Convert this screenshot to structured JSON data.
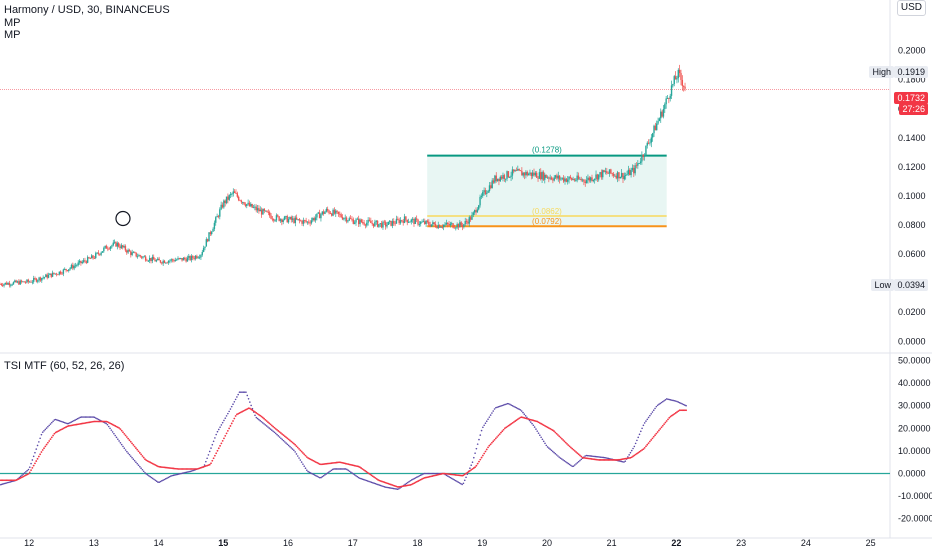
{
  "header": {
    "title": "Harmony / USD, 30, BINANCEUS",
    "indicator_1": "MP",
    "indicator_2": "MP"
  },
  "scale_label": "USD",
  "tsi_label": "TSI MTF (60, 52, 26, 26)",
  "tags": {
    "high_label": "High",
    "high_value": "0.1919",
    "low_label": "Low",
    "low_value": "0.0394",
    "last_price": "0.1732",
    "countdown": "27:26"
  },
  "colors": {
    "up": "#26a69a",
    "down": "#ef5350",
    "tsi": "#5b4aa8",
    "signal": "#f23645",
    "zero_line": "#26a69a",
    "box_top": "#089981",
    "box_mid": "#f7d95c",
    "box_bottom": "#f7931a",
    "box_fill": "#e8f6f3"
  },
  "chart_data": [
    {
      "type": "candlestick",
      "title": "Harmony / USD, 30, BINANCEUS",
      "y_ticks": [
        0.2,
        0.18,
        0.16,
        0.14,
        0.12,
        0.1,
        0.08,
        0.06,
        0.04,
        0.02,
        0
      ],
      "y_tick_labels": [
        "0.2000",
        "0.1800",
        "0.1600",
        "0.1400",
        "0.1200",
        "0.1000",
        "0.0800",
        "0.0600",
        "0.0400",
        "0.0200",
        "0.0000"
      ],
      "x_tick_labels": [
        "12",
        "13",
        "14",
        "15",
        "16",
        "17",
        "18",
        "19",
        "20",
        "21",
        "22",
        "23",
        "24",
        "25"
      ],
      "x_ticks": [
        12,
        13,
        14,
        15,
        16,
        17,
        18,
        19,
        20,
        21,
        22,
        23,
        24,
        25
      ],
      "xlim": [
        11.55,
        25.3
      ],
      "ylim": [
        -0.006,
        0.228
      ],
      "x_end": 22.15,
      "price_path": [
        [
          11.55,
          0.0395
        ],
        [
          12.0,
          0.041
        ],
        [
          12.5,
          0.048
        ],
        [
          13.0,
          0.058
        ],
        [
          13.2,
          0.065
        ],
        [
          13.35,
          0.067
        ],
        [
          13.6,
          0.06
        ],
        [
          14.0,
          0.055
        ],
        [
          14.5,
          0.057
        ],
        [
          14.65,
          0.06
        ],
        [
          14.85,
          0.08
        ],
        [
          15.0,
          0.095
        ],
        [
          15.15,
          0.102
        ],
        [
          15.4,
          0.093
        ],
        [
          15.8,
          0.085
        ],
        [
          16.3,
          0.082
        ],
        [
          16.6,
          0.09
        ],
        [
          17.0,
          0.083
        ],
        [
          17.5,
          0.08
        ],
        [
          17.8,
          0.084
        ],
        [
          18.0,
          0.082
        ],
        [
          18.3,
          0.08
        ],
        [
          18.7,
          0.08
        ],
        [
          18.85,
          0.086
        ],
        [
          19.0,
          0.1
        ],
        [
          19.2,
          0.112
        ],
        [
          19.5,
          0.116
        ],
        [
          19.8,
          0.115
        ],
        [
          20.2,
          0.112
        ],
        [
          20.6,
          0.111
        ],
        [
          20.9,
          0.116
        ],
        [
          21.2,
          0.114
        ],
        [
          21.35,
          0.118
        ],
        [
          21.5,
          0.13
        ],
        [
          21.65,
          0.145
        ],
        [
          21.8,
          0.16
        ],
        [
          21.9,
          0.172
        ],
        [
          22.02,
          0.184
        ],
        [
          22.1,
          0.178
        ],
        [
          22.15,
          0.1732
        ]
      ],
      "high": 0.1919,
      "low": 0.0394,
      "last": 0.1732,
      "box": {
        "x_start": 18.15,
        "x_end": 21.85,
        "top": 0.1278,
        "mid": 0.0862,
        "bottom": 0.0792,
        "top_label": "(0.1278)",
        "mid_label": "(0.0862)",
        "bottom_label": "(0.0792)"
      },
      "marker_circle": {
        "x": 13.45,
        "y": 0.0845
      }
    },
    {
      "type": "line",
      "title": "TSI MTF (60, 52, 26, 26)",
      "y_ticks": [
        50,
        40,
        30,
        20,
        10,
        0,
        -10,
        -20
      ],
      "y_tick_labels": [
        "50.0000",
        "40.0000",
        "30.0000",
        "20.0000",
        "10.0000",
        "0.0000",
        "-10.0000",
        "-20.0000"
      ],
      "ylim": [
        -25,
        52
      ],
      "series": [
        {
          "values": [
            [
              11.55,
              -5
            ],
            [
              11.8,
              -3
            ],
            [
              12.0,
              2
            ],
            [
              12.2,
              18
            ],
            [
              12.4,
              24
            ],
            [
              12.6,
              22
            ],
            [
              12.8,
              25
            ],
            [
              13.0,
              25
            ],
            [
              13.2,
              22
            ],
            [
              13.5,
              10
            ],
            [
              13.8,
              0
            ],
            [
              14.0,
              -4
            ],
            [
              14.2,
              -1
            ],
            [
              14.5,
              1
            ],
            [
              14.7,
              3
            ],
            [
              14.9,
              18
            ],
            [
              15.1,
              28
            ],
            [
              15.25,
              36
            ],
            [
              15.35,
              36
            ],
            [
              15.5,
              25
            ],
            [
              15.8,
              18
            ],
            [
              16.1,
              10
            ],
            [
              16.3,
              1
            ],
            [
              16.5,
              -2
            ],
            [
              16.7,
              2
            ],
            [
              16.9,
              2
            ],
            [
              17.1,
              -2
            ],
            [
              17.3,
              -4
            ],
            [
              17.5,
              -6
            ],
            [
              17.7,
              -7
            ],
            [
              17.9,
              -3
            ],
            [
              18.1,
              0
            ],
            [
              18.4,
              0
            ],
            [
              18.7,
              -5
            ],
            [
              18.85,
              5
            ],
            [
              19.0,
              20
            ],
            [
              19.2,
              29
            ],
            [
              19.4,
              31
            ],
            [
              19.6,
              28
            ],
            [
              19.8,
              21
            ],
            [
              20.0,
              12
            ],
            [
              20.2,
              7
            ],
            [
              20.4,
              3
            ],
            [
              20.6,
              8
            ],
            [
              20.9,
              7
            ],
            [
              21.2,
              5
            ],
            [
              21.35,
              12
            ],
            [
              21.5,
              22
            ],
            [
              21.7,
              30
            ],
            [
              21.85,
              33
            ],
            [
              22.0,
              32
            ],
            [
              22.15,
              30
            ]
          ]
        },
        {
          "values": [
            [
              11.55,
              -3
            ],
            [
              11.8,
              -3
            ],
            [
              12.0,
              0
            ],
            [
              12.2,
              10
            ],
            [
              12.4,
              18
            ],
            [
              12.6,
              21
            ],
            [
              12.8,
              22
            ],
            [
              13.0,
              23
            ],
            [
              13.2,
              23
            ],
            [
              13.4,
              20
            ],
            [
              13.6,
              13
            ],
            [
              13.8,
              6
            ],
            [
              14.0,
              3
            ],
            [
              14.3,
              2
            ],
            [
              14.6,
              2
            ],
            [
              14.8,
              4
            ],
            [
              15.0,
              15
            ],
            [
              15.2,
              26
            ],
            [
              15.4,
              29
            ],
            [
              15.6,
              25
            ],
            [
              15.8,
              20
            ],
            [
              16.1,
              13
            ],
            [
              16.3,
              7
            ],
            [
              16.5,
              4
            ],
            [
              16.8,
              5
            ],
            [
              17.1,
              3
            ],
            [
              17.4,
              -3
            ],
            [
              17.7,
              -6
            ],
            [
              17.9,
              -5
            ],
            [
              18.1,
              -2
            ],
            [
              18.4,
              0
            ],
            [
              18.7,
              -1
            ],
            [
              18.9,
              3
            ],
            [
              19.1,
              12
            ],
            [
              19.35,
              20
            ],
            [
              19.6,
              25
            ],
            [
              19.85,
              23
            ],
            [
              20.1,
              19
            ],
            [
              20.35,
              12
            ],
            [
              20.55,
              7
            ],
            [
              20.8,
              6
            ],
            [
              21.1,
              6
            ],
            [
              21.3,
              7
            ],
            [
              21.5,
              11
            ],
            [
              21.7,
              18
            ],
            [
              21.9,
              25
            ],
            [
              22.05,
              28
            ],
            [
              22.15,
              28
            ]
          ]
        }
      ]
    }
  ]
}
